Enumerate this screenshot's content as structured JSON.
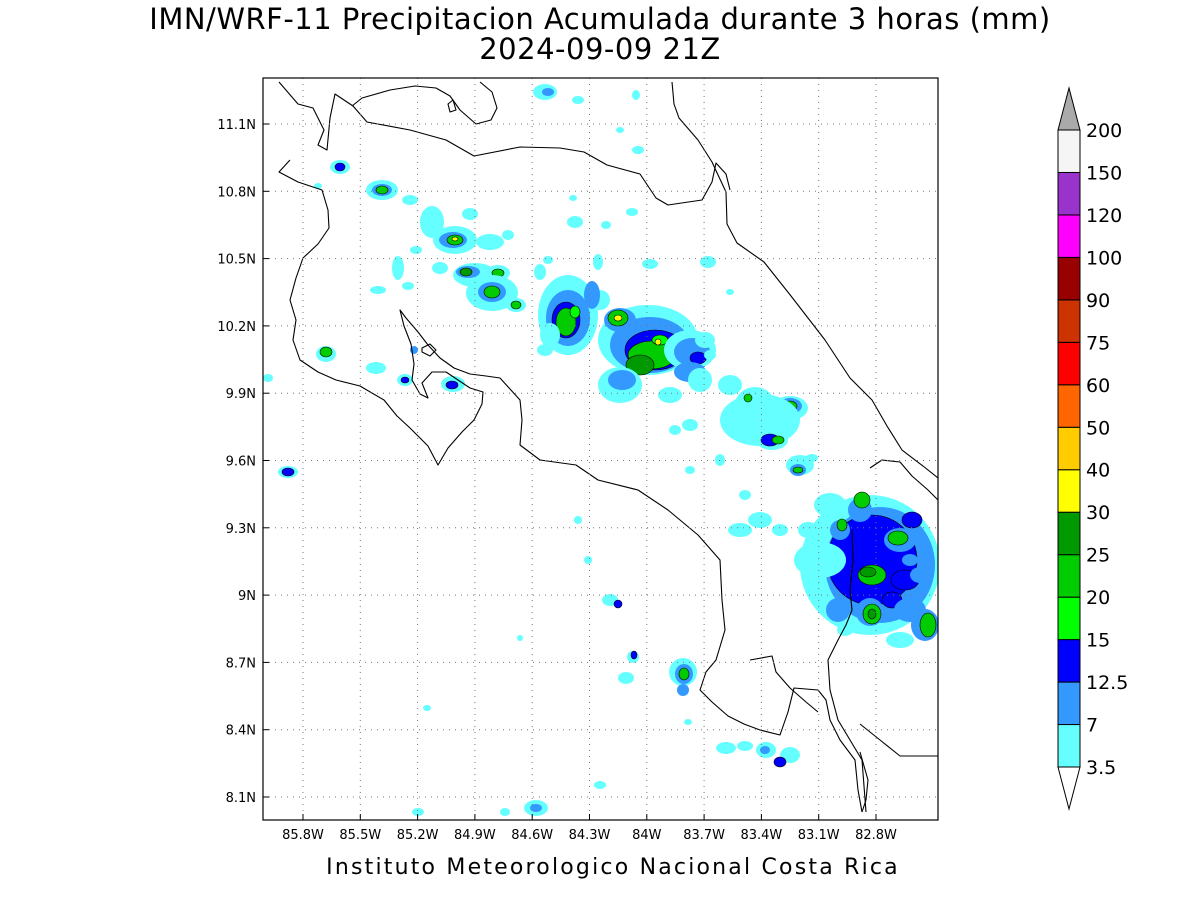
{
  "title": {
    "line1": "IMN/WRF-11 Precipitacion Acumulada durante 3 horas (mm)",
    "line2": "2024-09-09 21Z"
  },
  "footer": "Instituto Meteorologico Nacional Costa Rica",
  "axes": {
    "lat_ticks": [
      "11.1N",
      "10.8N",
      "10.5N",
      "10.2N",
      "9.9N",
      "9.6N",
      "9.3N",
      "9N",
      "8.7N",
      "8.4N",
      "8.1N"
    ],
    "lon_ticks": [
      "85.8W",
      "85.5W",
      "85.2W",
      "84.9W",
      "84.6W",
      "84.3W",
      "84W",
      "83.7W",
      "83.4W",
      "83.1W",
      "82.8W"
    ],
    "lat_range": [
      8.02,
      11.3
    ],
    "lon_range": [
      -86.0,
      -82.55
    ],
    "grid": true
  },
  "colorbar": {
    "levels": [
      "3.5",
      "7",
      "12.5",
      "15",
      "20",
      "25",
      "30",
      "40",
      "50",
      "60",
      "75",
      "90",
      "100",
      "120",
      "150",
      "200"
    ],
    "colors": [
      "#66ffff",
      "#3399ff",
      "#0000ff",
      "#00ff00",
      "#00cc00",
      "#009900",
      "#ffff00",
      "#ffcc00",
      "#ff6600",
      "#ff0000",
      "#cc3300",
      "#990000",
      "#ff00ff",
      "#9933cc",
      "#f5f5f5"
    ],
    "over_color": "#aaaaaa",
    "under_color": "#ffffff"
  }
}
